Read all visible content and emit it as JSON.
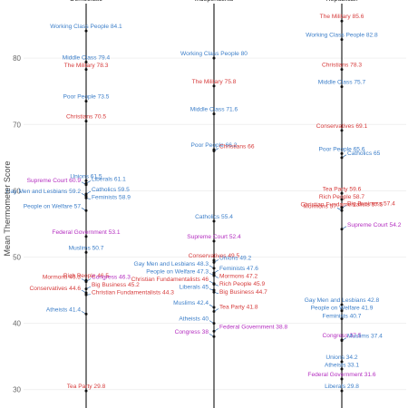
{
  "chart_data": {
    "type": "scatter",
    "ylabel": "Mean Thermometer Score",
    "ylim": [
      27.5,
      88.5
    ],
    "yticks": [
      30,
      40,
      50,
      60,
      70,
      80
    ],
    "grid": true,
    "colors": {
      "Democratic": "#3d7fc9",
      "Republican": "#d63b3b",
      "Neutral": "#b42ec0"
    },
    "panels": [
      {
        "name": "Democratic",
        "points": [
          {
            "label": "Working Class People",
            "value": 84.1,
            "group": "Democratic"
          },
          {
            "label": "Middle Class",
            "value": 79.4,
            "group": "Democratic"
          },
          {
            "label": "The Military",
            "value": 78.3,
            "group": "Republican"
          },
          {
            "label": "Poor People",
            "value": 73.5,
            "group": "Democratic"
          },
          {
            "label": "Christians",
            "value": 70.5,
            "group": "Republican"
          },
          {
            "label": "Unions",
            "value": 61.5,
            "group": "Democratic"
          },
          {
            "label": "Liberals",
            "value": 61.1,
            "group": "Democratic"
          },
          {
            "label": "Supreme Court",
            "value": 60.9,
            "group": "Neutral"
          },
          {
            "label": "Catholics",
            "value": 59.5,
            "group": "Democratic"
          },
          {
            "label": "Feminists",
            "value": 58.9,
            "group": "Democratic"
          },
          {
            "label": "Gay Men and Lesbians",
            "value": 59.2,
            "group": "Democratic"
          },
          {
            "label": "People on Welfare",
            "value": 57,
            "group": "Democratic"
          },
          {
            "label": "Federal Government",
            "value": 53.1,
            "group": "Neutral"
          },
          {
            "label": "Muslims",
            "value": 50.7,
            "group": "Democratic"
          },
          {
            "label": "Rich People",
            "value": 46.5,
            "group": "Republican"
          },
          {
            "label": "Congress",
            "value": 46.3,
            "group": "Neutral"
          },
          {
            "label": "Mormons",
            "value": 46.3,
            "group": "Republican"
          },
          {
            "label": "Big Business",
            "value": 45.2,
            "group": "Republican"
          },
          {
            "label": "Conservatives",
            "value": 44.6,
            "group": "Republican"
          },
          {
            "label": "Christian Fundamentalists",
            "value": 44.3,
            "group": "Republican"
          },
          {
            "label": "Atheists",
            "value": 41.4,
            "group": "Democratic"
          },
          {
            "label": "Tea Party",
            "value": 29.8,
            "group": "Republican"
          }
        ]
      },
      {
        "name": "Independents",
        "points": [
          {
            "label": "Working Class People",
            "value": 80,
            "group": "Democratic"
          },
          {
            "label": "The Military",
            "value": 75.8,
            "group": "Republican"
          },
          {
            "label": "Middle Class",
            "value": 71.6,
            "group": "Democratic"
          },
          {
            "label": "Poor People",
            "value": 66.2,
            "group": "Democratic"
          },
          {
            "label": "Christians",
            "value": 66,
            "group": "Republican"
          },
          {
            "label": "Catholics",
            "value": 55.4,
            "group": "Democratic"
          },
          {
            "label": "Supreme Court",
            "value": 52.4,
            "group": "Neutral"
          },
          {
            "label": "Conservatives",
            "value": 49.5,
            "group": "Republican"
          },
          {
            "label": "Unions",
            "value": 49.2,
            "group": "Democratic"
          },
          {
            "label": "Feminists",
            "value": 47.6,
            "group": "Democratic"
          },
          {
            "label": "Gay Men and Lesbians",
            "value": 48.3,
            "group": "Democratic"
          },
          {
            "label": "People on Welfare",
            "value": 47.3,
            "group": "Democratic"
          },
          {
            "label": "Mormons",
            "value": 47.2,
            "group": "Republican"
          },
          {
            "label": "Rich People",
            "value": 45.9,
            "group": "Republican"
          },
          {
            "label": "Christian Fundamentalists",
            "value": 46,
            "group": "Republican"
          },
          {
            "label": "Big Business",
            "value": 44.7,
            "group": "Republican"
          },
          {
            "label": "Liberals",
            "value": 45,
            "group": "Democratic"
          },
          {
            "label": "Muslims",
            "value": 42.4,
            "group": "Democratic"
          },
          {
            "label": "Tea Party",
            "value": 41.8,
            "group": "Republican"
          },
          {
            "label": "Atheists",
            "value": 40,
            "group": "Democratic"
          },
          {
            "label": "Federal Government",
            "value": 38.8,
            "group": "Neutral"
          },
          {
            "label": "Congress",
            "value": 38,
            "group": "Neutral"
          }
        ]
      },
      {
        "name": "Republican",
        "points": [
          {
            "label": "The Military",
            "value": 85.6,
            "group": "Republican"
          },
          {
            "label": "Working Class People",
            "value": 82.8,
            "group": "Democratic"
          },
          {
            "label": "Christians",
            "value": 78.3,
            "group": "Republican"
          },
          {
            "label": "Middle Class",
            "value": 75.7,
            "group": "Democratic"
          },
          {
            "label": "Conservatives",
            "value": 69.1,
            "group": "Republican"
          },
          {
            "label": "Poor People",
            "value": 65.6,
            "group": "Democratic"
          },
          {
            "label": "Catholics",
            "value": 65,
            "group": "Democratic"
          },
          {
            "label": "Tea Party",
            "value": 59.6,
            "group": "Republican"
          },
          {
            "label": "Rich People",
            "value": 58.7,
            "group": "Republican"
          },
          {
            "label": "Christian Fundamentalists",
            "value": 57.5,
            "group": "Republican"
          },
          {
            "label": "Big Business",
            "value": 57.4,
            "group": "Republican"
          },
          {
            "label": "Mormons",
            "value": 57,
            "group": "Republican"
          },
          {
            "label": "Supreme Court",
            "value": 54.2,
            "group": "Neutral"
          },
          {
            "label": "Gay Men and Lesbians",
            "value": 42.8,
            "group": "Democratic"
          },
          {
            "label": "People on Welfare",
            "value": 41.9,
            "group": "Democratic"
          },
          {
            "label": "Feminists",
            "value": 40.7,
            "group": "Democratic"
          },
          {
            "label": "Congress",
            "value": 37.5,
            "group": "Neutral"
          },
          {
            "label": "Muslims",
            "value": 37.4,
            "group": "Democratic"
          },
          {
            "label": "Unions",
            "value": 34.2,
            "group": "Democratic"
          },
          {
            "label": "Atheists",
            "value": 33.1,
            "group": "Democratic"
          },
          {
            "label": "Federal Government",
            "value": 31.6,
            "group": "Neutral"
          },
          {
            "label": "Liberals",
            "value": 29.8,
            "group": "Democratic"
          }
        ]
      }
    ]
  }
}
